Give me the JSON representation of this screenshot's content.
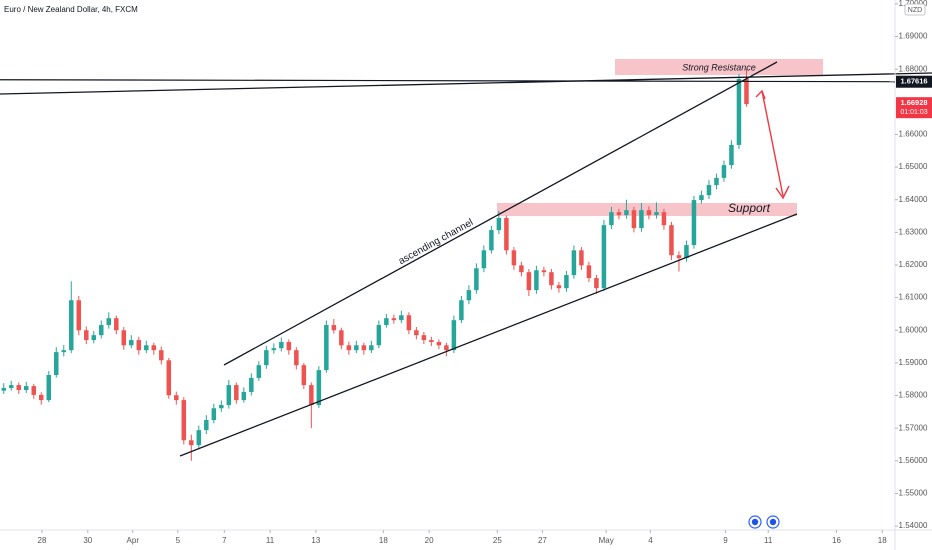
{
  "chart_data": {
    "type": "candlestick",
    "title": "Euro / New Zealand Dollar, 4h, FXCM",
    "currency": "NZD",
    "up_color": "#26a69a",
    "down_color": "#ef5350",
    "candles": [
      [
        1.5815,
        1.5838,
        1.5805,
        1.5823
      ],
      [
        1.5823,
        1.5845,
        1.5815,
        1.5832
      ],
      [
        1.5832,
        1.584,
        1.5805,
        1.5817
      ],
      [
        1.5817,
        1.5842,
        1.5808,
        1.5829
      ],
      [
        1.5829,
        1.5836,
        1.579,
        1.5802
      ],
      [
        1.5802,
        1.581,
        1.5772,
        1.5786
      ],
      [
        1.5786,
        1.5875,
        1.578,
        1.5863
      ],
      [
        1.5863,
        1.5948,
        1.5855,
        1.5933
      ],
      [
        1.5933,
        1.5955,
        1.592,
        1.5939
      ],
      [
        1.5939,
        1.615,
        1.593,
        1.6092
      ],
      [
        1.6092,
        1.6105,
        1.5985,
        1.6
      ],
      [
        1.6,
        1.6012,
        1.5958,
        1.597
      ],
      [
        1.597,
        1.5998,
        1.596,
        1.5985
      ],
      [
        1.5985,
        1.603,
        1.5975,
        1.6016
      ],
      [
        1.6016,
        1.6055,
        1.6005,
        1.6037
      ],
      [
        1.6037,
        1.6045,
        1.5988,
        1.6
      ],
      [
        1.6,
        1.601,
        1.594,
        1.5954
      ],
      [
        1.5954,
        1.5985,
        1.5945,
        1.597
      ],
      [
        1.597,
        1.598,
        1.5925,
        1.5939
      ],
      [
        1.5939,
        1.5968,
        1.593,
        1.5954
      ],
      [
        1.5954,
        1.5962,
        1.5925,
        1.5939
      ],
      [
        1.5939,
        1.595,
        1.5895,
        1.5908
      ],
      [
        1.5908,
        1.5915,
        1.579,
        1.5801
      ],
      [
        1.5801,
        1.5812,
        1.5772,
        1.5786
      ],
      [
        1.5786,
        1.5795,
        1.565,
        1.5663
      ],
      [
        1.5663,
        1.568,
        1.56,
        1.5648
      ],
      [
        1.5648,
        1.5708,
        1.5635,
        1.5694
      ],
      [
        1.5694,
        1.574,
        1.5682,
        1.5725
      ],
      [
        1.5725,
        1.5775,
        1.5715,
        1.5761
      ],
      [
        1.5761,
        1.5785,
        1.575,
        1.5771
      ],
      [
        1.5771,
        1.5848,
        1.576,
        1.5832
      ],
      [
        1.5832,
        1.584,
        1.5775,
        1.5786
      ],
      [
        1.5786,
        1.5825,
        1.5778,
        1.5811
      ],
      [
        1.5811,
        1.5868,
        1.58,
        1.5854
      ],
      [
        1.5854,
        1.5905,
        1.5845,
        1.5893
      ],
      [
        1.5893,
        1.5952,
        1.5882,
        1.5939
      ],
      [
        1.5939,
        1.596,
        1.5928,
        1.5945
      ],
      [
        1.5945,
        1.5978,
        1.5935,
        1.5964
      ],
      [
        1.5964,
        1.5972,
        1.5925,
        1.5939
      ],
      [
        1.5939,
        1.5948,
        1.588,
        1.5893
      ],
      [
        1.5893,
        1.59,
        1.582,
        1.5832
      ],
      [
        1.5832,
        1.584,
        1.57,
        1.5771
      ],
      [
        1.5771,
        1.589,
        1.5762,
        1.5878
      ],
      [
        1.5878,
        1.603,
        1.587,
        1.6016
      ],
      [
        1.6016,
        1.6035,
        1.599,
        1.6
      ],
      [
        1.6,
        1.6008,
        1.5942,
        1.5954
      ],
      [
        1.5954,
        1.5965,
        1.5925,
        1.5939
      ],
      [
        1.5939,
        1.5968,
        1.593,
        1.5954
      ],
      [
        1.5954,
        1.5962,
        1.5925,
        1.5939
      ],
      [
        1.5939,
        1.5968,
        1.593,
        1.5954
      ],
      [
        1.5954,
        1.603,
        1.5945,
        1.6016
      ],
      [
        1.6016,
        1.605,
        1.6008,
        1.6037
      ],
      [
        1.6037,
        1.6048,
        1.602,
        1.6031
      ],
      [
        1.6031,
        1.606,
        1.6022,
        1.6046
      ],
      [
        1.6046,
        1.6055,
        1.5988,
        1.6
      ],
      [
        1.6,
        1.601,
        1.5972,
        1.5985
      ],
      [
        1.5985,
        1.5995,
        1.5958,
        1.597
      ],
      [
        1.597,
        1.598,
        1.5952,
        1.5964
      ],
      [
        1.5964,
        1.5972,
        1.5942,
        1.5954
      ],
      [
        1.5954,
        1.5962,
        1.592,
        1.5939
      ],
      [
        1.5939,
        1.6045,
        1.593,
        1.6031
      ],
      [
        1.6031,
        1.6105,
        1.6022,
        1.6092
      ],
      [
        1.6092,
        1.6138,
        1.608,
        1.6123
      ],
      [
        1.6123,
        1.6205,
        1.6112,
        1.619
      ],
      [
        1.619,
        1.626,
        1.6178,
        1.6245
      ],
      [
        1.6245,
        1.632,
        1.6235,
        1.6307
      ],
      [
        1.6307,
        1.6365,
        1.6295,
        1.6344
      ],
      [
        1.6344,
        1.6352,
        1.6232,
        1.6245
      ],
      [
        1.6245,
        1.6255,
        1.6185,
        1.6199
      ],
      [
        1.6199,
        1.621,
        1.6165,
        1.6178
      ],
      [
        1.6178,
        1.6188,
        1.6105,
        1.6123
      ],
      [
        1.6123,
        1.6198,
        1.6112,
        1.6184
      ],
      [
        1.6184,
        1.6195,
        1.6165,
        1.6178
      ],
      [
        1.6178,
        1.6188,
        1.6125,
        1.6138
      ],
      [
        1.6138,
        1.6148,
        1.6115,
        1.6129
      ],
      [
        1.6129,
        1.6182,
        1.6118,
        1.6169
      ],
      [
        1.6169,
        1.626,
        1.6158,
        1.6245
      ],
      [
        1.6245,
        1.6255,
        1.6185,
        1.6199
      ],
      [
        1.6199,
        1.621,
        1.6148,
        1.616
      ],
      [
        1.616,
        1.617,
        1.6112,
        1.6129
      ],
      [
        1.6129,
        1.6338,
        1.612,
        1.6322
      ],
      [
        1.6322,
        1.6378,
        1.631,
        1.6362
      ],
      [
        1.6362,
        1.6372,
        1.634,
        1.6353
      ],
      [
        1.6353,
        1.64,
        1.6342,
        1.6368
      ],
      [
        1.6368,
        1.6378,
        1.63,
        1.6313
      ],
      [
        1.6313,
        1.639,
        1.6302,
        1.6368
      ],
      [
        1.6368,
        1.638,
        1.634,
        1.6353
      ],
      [
        1.6353,
        1.6392,
        1.6342,
        1.6362
      ],
      [
        1.6362,
        1.6372,
        1.6308,
        1.6322
      ],
      [
        1.6322,
        1.6332,
        1.6215,
        1.623
      ],
      [
        1.623,
        1.6242,
        1.618,
        1.6221
      ],
      [
        1.6221,
        1.6275,
        1.621,
        1.6261
      ],
      [
        1.6261,
        1.6412,
        1.625,
        1.6399
      ],
      [
        1.6399,
        1.6428,
        1.6388,
        1.6414
      ],
      [
        1.6414,
        1.646,
        1.6402,
        1.6445
      ],
      [
        1.6445,
        1.648,
        1.6432,
        1.6467
      ],
      [
        1.6467,
        1.652,
        1.6455,
        1.6506
      ],
      [
        1.6506,
        1.6582,
        1.6495,
        1.6568
      ],
      [
        1.6568,
        1.6785,
        1.6555,
        1.677
      ],
      [
        1.677,
        1.68,
        1.6685,
        1.6693
      ]
    ],
    "xlim": [
      -0.5,
      118.8
    ],
    "xticks": [
      {
        "value": 5.1,
        "label": "28"
      },
      {
        "value": 11.2,
        "label": "30"
      },
      {
        "value": 17.2,
        "label": "Apr"
      },
      {
        "value": 23.2,
        "label": "5"
      },
      {
        "value": 29.4,
        "label": "7"
      },
      {
        "value": 35.5,
        "label": "11"
      },
      {
        "value": 41.6,
        "label": "13"
      },
      {
        "value": 50.6,
        "label": "18"
      },
      {
        "value": 56.7,
        "label": "20"
      },
      {
        "value": 65.8,
        "label": "25"
      },
      {
        "value": 71.8,
        "label": "27"
      },
      {
        "value": 80.3,
        "label": "May"
      },
      {
        "value": 86.2,
        "label": "4"
      },
      {
        "value": 96.2,
        "label": "9"
      },
      {
        "value": 101.9,
        "label": "11"
      },
      {
        "value": 111,
        "label": "16"
      },
      {
        "value": 117.1,
        "label": "18"
      }
    ],
    "ylim": [
      1.5388,
      1.7012
    ],
    "yticks": [
      {
        "value": 1.54,
        "label": "1.54000"
      },
      {
        "value": 1.55,
        "label": "1.55000"
      },
      {
        "value": 1.56,
        "label": "1.56000"
      },
      {
        "value": 1.57,
        "label": "1.57000"
      },
      {
        "value": 1.58,
        "label": "1.58000"
      },
      {
        "value": 1.59,
        "label": "1.59000"
      },
      {
        "value": 1.6,
        "label": "1.60000"
      },
      {
        "value": 1.61,
        "label": "1.61000"
      },
      {
        "value": 1.62,
        "label": "1.62000"
      },
      {
        "value": 1.63,
        "label": "1.63000"
      },
      {
        "value": 1.64,
        "label": "1.64000"
      },
      {
        "value": 1.65,
        "label": "1.65000"
      },
      {
        "value": 1.66,
        "label": "1.66000"
      },
      {
        "value": 1.68,
        "label": "1.68000"
      },
      {
        "value": 1.69,
        "label": "1.69000"
      },
      {
        "value": 1.7,
        "label": "1.70000"
      }
    ],
    "resistance_price": 1.67616,
    "last_price": 1.66928,
    "countdown": "01:01:03",
    "annotations": {
      "channel": "ascending channel",
      "resistance": "Strong Resistance",
      "support": "Support"
    }
  }
}
